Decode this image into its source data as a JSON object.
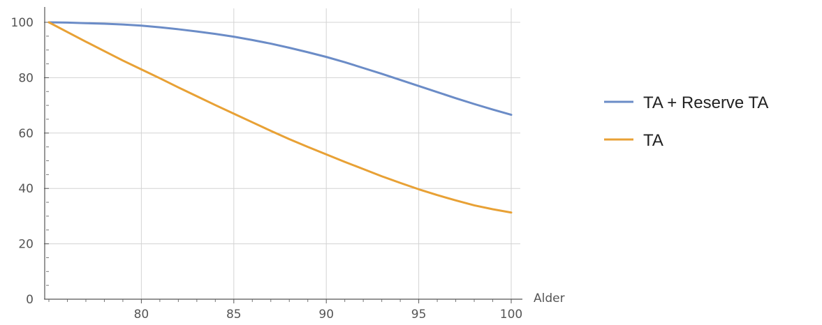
{
  "chart_data": {
    "type": "line",
    "title": "",
    "xlabel": "Alder",
    "ylabel": "",
    "xlim": [
      75,
      100
    ],
    "ylim": [
      0,
      100
    ],
    "x_ticks": [
      80,
      85,
      90,
      95,
      100
    ],
    "y_ticks": [
      0,
      20,
      40,
      60,
      80,
      100
    ],
    "grid": true,
    "legend_position": "right",
    "x": [
      75,
      76,
      77,
      78,
      79,
      80,
      81,
      82,
      83,
      84,
      85,
      86,
      87,
      88,
      89,
      90,
      91,
      92,
      93,
      94,
      95,
      96,
      97,
      98,
      99,
      100
    ],
    "series": [
      {
        "name": "TA + Reserve TA",
        "color": "#6b8cc7",
        "values": [
          100,
          99.9,
          99.7,
          99.5,
          99.2,
          98.8,
          98.2,
          97.5,
          96.7,
          95.8,
          94.8,
          93.6,
          92.3,
          90.8,
          89.2,
          87.5,
          85.6,
          83.5,
          81.4,
          79.2,
          77.0,
          74.8,
          72.6,
          70.5,
          68.5,
          66.6
        ]
      },
      {
        "name": "TA",
        "color": "#e8a135",
        "values": [
          100,
          96.5,
          93.0,
          89.6,
          86.2,
          83.0,
          79.8,
          76.5,
          73.3,
          70.1,
          67.0,
          63.9,
          60.8,
          57.8,
          55.0,
          52.3,
          49.6,
          47.0,
          44.4,
          42.0,
          39.7,
          37.6,
          35.7,
          33.9,
          32.5,
          31.3
        ]
      }
    ]
  }
}
